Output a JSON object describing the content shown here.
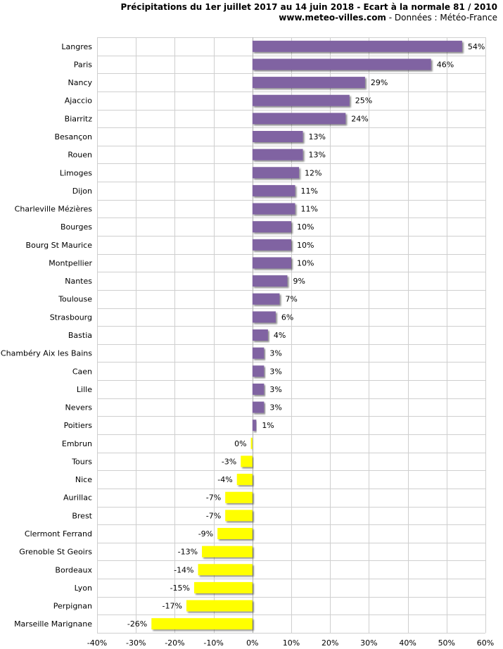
{
  "header": {
    "title": "Précipitations du 1er juillet 2017 au 14 juin 2018 - Ecart à la normale 81 / 2010",
    "site": "www.meteo-villes.com",
    "source": " - Données : Météo-France"
  },
  "chart_data": {
    "type": "bar",
    "orientation": "horizontal",
    "title": "Précipitations du 1er juillet 2017 au 14 juin 2018 - Ecart à la normale 81 / 2010",
    "xlabel": "",
    "ylabel": "",
    "xlim": [
      -40,
      60
    ],
    "x_ticks": [
      -40,
      -30,
      -20,
      -10,
      0,
      10,
      20,
      30,
      40,
      50,
      60
    ],
    "x_tick_labels": [
      "-40%",
      "-30%",
      "-20%",
      "-10%",
      "0%",
      "10%",
      "20%",
      "30%",
      "40%",
      "50%",
      "60%"
    ],
    "grid": true,
    "positive_color": "#8064a2",
    "negative_color": "#ffff00",
    "categories": [
      "Langres",
      "Paris",
      "Nancy",
      "Ajaccio",
      "Biarritz",
      "Besançon",
      "Rouen",
      "Limoges",
      "Dijon",
      "Charleville Mézières",
      "Bourges",
      "Bourg St Maurice",
      "Montpellier",
      "Nantes",
      "Toulouse",
      "Strasbourg",
      "Bastia",
      "Chambéry Aix les Bains",
      "Caen",
      "Lille",
      "Nevers",
      "Poitiers",
      "Embrun",
      "Tours",
      "Nice",
      "Aurillac",
      "Brest",
      "Clermont Ferrand",
      "Grenoble St Geoirs",
      "Bordeaux",
      "Lyon",
      "Perpignan",
      "Marseille Marignane"
    ],
    "values": [
      54,
      46,
      29,
      25,
      24,
      13,
      13,
      12,
      11,
      11,
      10,
      10,
      10,
      9,
      7,
      6,
      4,
      3,
      3,
      3,
      3,
      1,
      -0.4,
      -3,
      -4,
      -7,
      -7,
      -9,
      -13,
      -14,
      -15,
      -17,
      -26
    ],
    "value_labels": [
      "54%",
      "46%",
      "29%",
      "25%",
      "24%",
      "13%",
      "13%",
      "12%",
      "11%",
      "11%",
      "10%",
      "10%",
      "10%",
      "9%",
      "7%",
      "6%",
      "4%",
      "3%",
      "3%",
      "3%",
      "3%",
      "1%",
      "0%",
      "-3%",
      "-4%",
      "-7%",
      "-7%",
      "-9%",
      "-13%",
      "-14%",
      "-15%",
      "-17%",
      "-26%"
    ]
  }
}
